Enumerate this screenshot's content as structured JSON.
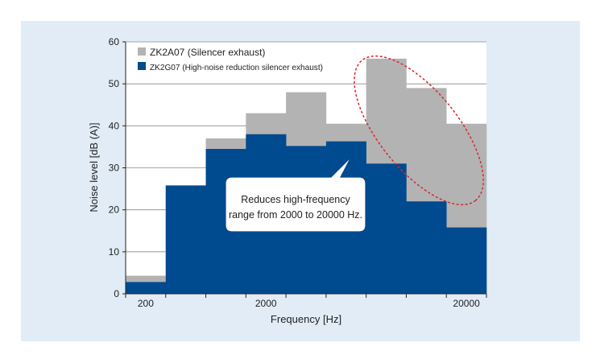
{
  "chart_data": {
    "type": "bar",
    "title": "",
    "xlabel": "Frequency [Hz]",
    "ylabel": "Noise level [dB (A)]",
    "ylim": [
      0,
      60
    ],
    "yticks": [
      0,
      10,
      20,
      30,
      40,
      50,
      60
    ],
    "x_scale": "log",
    "x_tick_labels": [
      "200",
      "2000",
      "20000"
    ],
    "grid": true,
    "legend_position": "top-left",
    "bins": 9,
    "series": [
      {
        "name": "ZK2A07 (Silencer exhaust)",
        "color": "#b3b3b3",
        "values": [
          4.3,
          25.8,
          37.0,
          43.0,
          48.0,
          40.5,
          56.0,
          49.0,
          40.5
        ]
      },
      {
        "name": "ZK2G07 (High-noise reduction silencer exhaust)",
        "color": "#004a8f",
        "values": [
          2.8,
          25.8,
          34.5,
          38.0,
          35.2,
          36.3,
          31.0,
          22.0,
          15.8
        ]
      }
    ],
    "annotations": [
      {
        "text": "Reduces high-frequency range from 2000 to 20000 Hz.",
        "lines": [
          "Reduces high-frequency",
          "range from 2000 to 20000 Hz."
        ]
      }
    ]
  }
}
